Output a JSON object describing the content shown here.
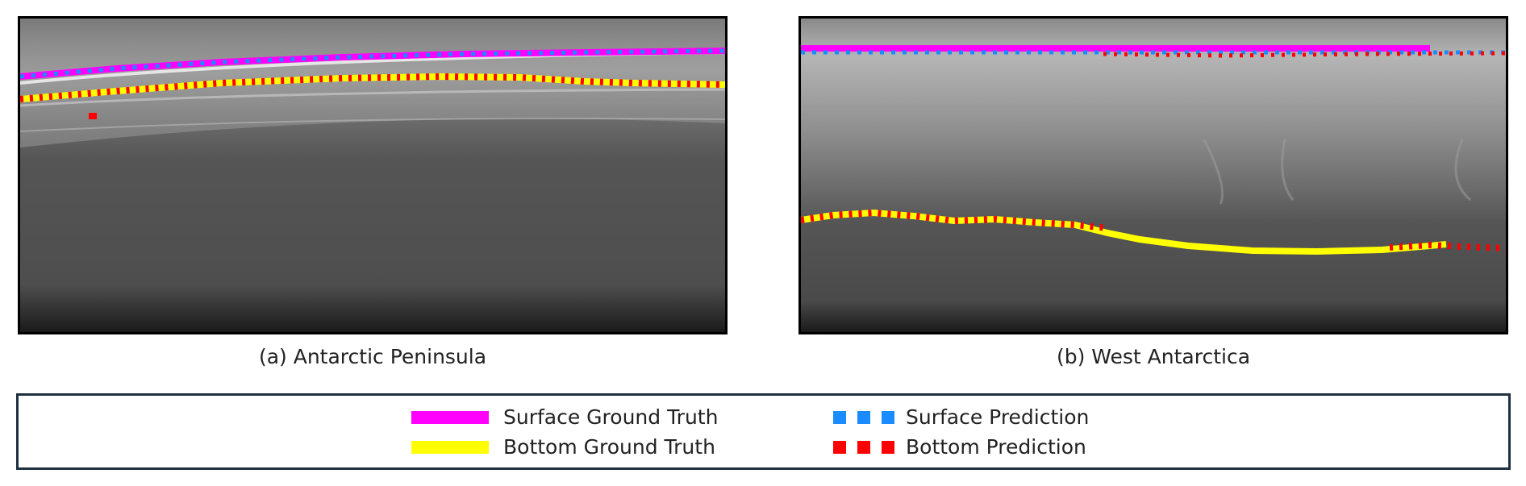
{
  "panels": [
    {
      "id": "a",
      "caption": "(a) Antarctic Peninsula"
    },
    {
      "id": "b",
      "caption": "(b) West Antarctica"
    }
  ],
  "legend": {
    "surface_gt": "Surface Ground Truth",
    "bottom_gt": "Bottom Ground Truth",
    "surface_pred": "Surface Prediction",
    "bottom_pred": "Bottom Prediction"
  },
  "colors": {
    "surface_gt": "#ff00ff",
    "bottom_gt": "#ffff00",
    "surface_pred": "#1a8cff",
    "bottom_pred": "#ff0000"
  }
}
